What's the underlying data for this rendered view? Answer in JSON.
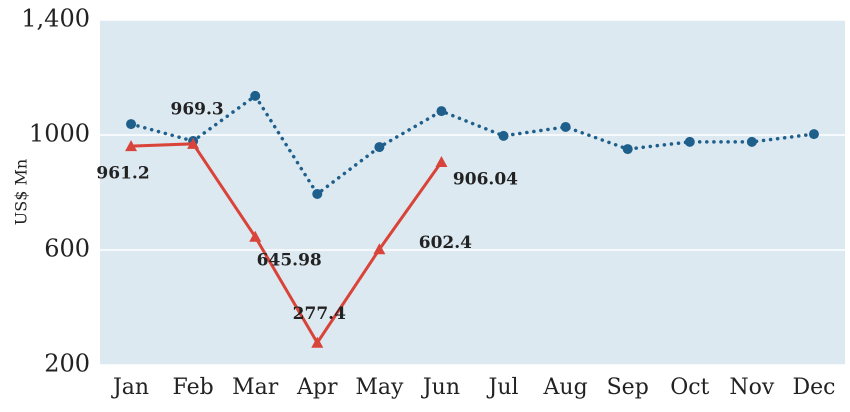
{
  "chart_data": {
    "type": "line",
    "y_label": "US$ Mn",
    "categories": [
      "Jan",
      "Feb",
      "Mar",
      "Apr",
      "May",
      "Jun",
      "Jul",
      "Aug",
      "Sep",
      "Oct",
      "Nov",
      "Dec"
    ],
    "series": [
      {
        "color": "#1f5f8b",
        "style": "dotted",
        "marker": "circle",
        "values": [
          1038,
          979,
          1136,
          795,
          958,
          1083,
          997,
          1028,
          951,
          976,
          976,
          1003
        ]
      },
      {
        "color": "#d9443a",
        "style": "solid",
        "marker": "triangle",
        "values": [
          961.2,
          969.3,
          645.98,
          277.4,
          602.4,
          906.04,
          null,
          null,
          null,
          null,
          null,
          null
        ]
      }
    ],
    "ylim": [
      200,
      1400
    ],
    "yticks": [
      200,
      600,
      1000,
      {
        "value": 1400,
        "label": "1,400"
      }
    ],
    "grid": true
  }
}
